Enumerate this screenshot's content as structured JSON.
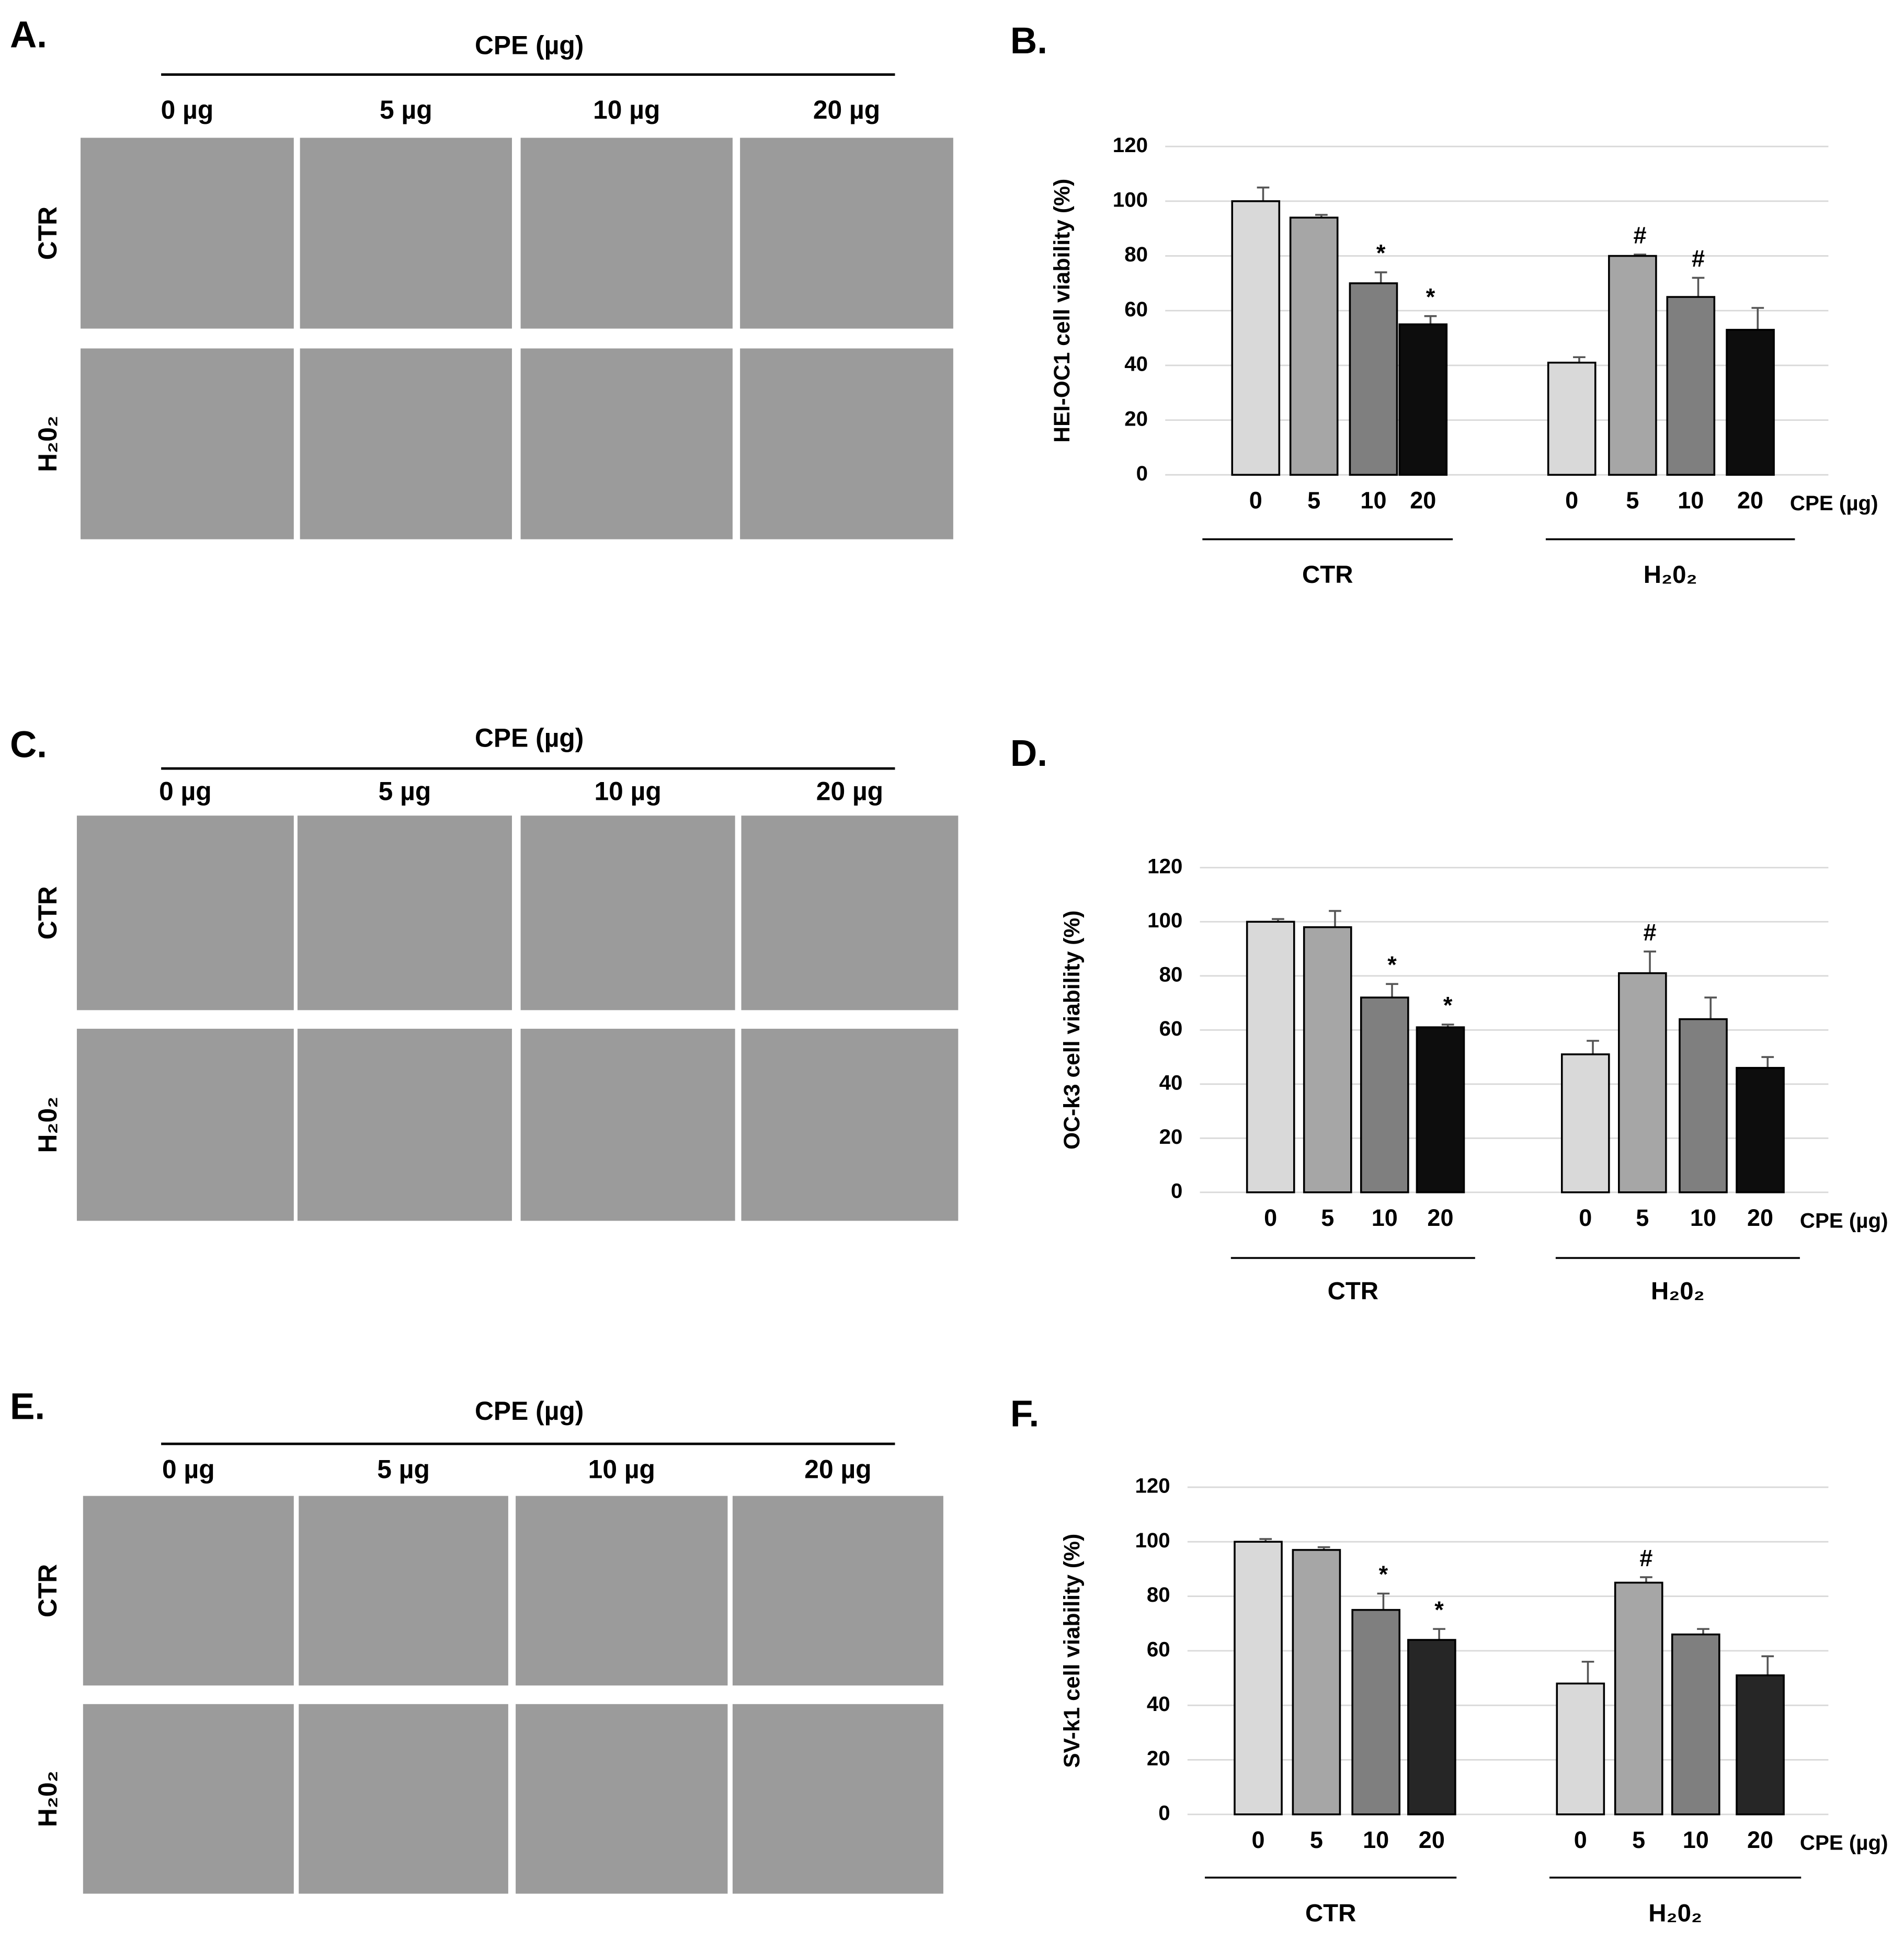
{
  "image_panels": [
    {
      "label": "A.",
      "header": "CPE (µg)",
      "columns": [
        "0 µg",
        "5 µg",
        "10 µg",
        "20 µg"
      ],
      "rows": [
        "CTR",
        "H₂0₂"
      ]
    },
    {
      "label": "C.",
      "header": "CPE (µg)",
      "columns": [
        "0 µg",
        "5 µg",
        "10 µg",
        "20 µg"
      ],
      "rows": [
        "CTR",
        "H₂0₂"
      ]
    },
    {
      "label": "E.",
      "header": "CPE (µg)",
      "columns": [
        "0 µg",
        "5 µg",
        "10 µg",
        "20 µg"
      ],
      "rows": [
        "CTR",
        "H₂0₂"
      ]
    }
  ],
  "chart_data": [
    {
      "type": "bar",
      "panel_label": "B.",
      "y_label": "HEI-OC1 cell viability (%)",
      "x_label": "CPE (µg)",
      "categories": [
        "0",
        "5",
        "10",
        "20"
      ],
      "colors": [
        "#d9d9d9",
        "#a6a6a6",
        "#7f7f7f",
        "#0d0d0d"
      ],
      "series": [
        {
          "name": "CTR",
          "values": [
            100,
            94,
            70,
            55
          ],
          "errors": [
            5,
            1,
            4,
            3
          ],
          "annotations": [
            null,
            null,
            "*",
            "*"
          ]
        },
        {
          "name": "H₂0₂",
          "values": [
            41,
            80,
            65,
            53
          ],
          "errors": [
            2,
            0.5,
            7,
            8
          ],
          "annotations": [
            null,
            "#",
            "#",
            null
          ]
        }
      ],
      "ylim": [
        0,
        120
      ],
      "yticks": [
        0,
        20,
        40,
        60,
        80,
        100,
        120
      ],
      "grid": true
    },
    {
      "type": "bar",
      "panel_label": "D.",
      "y_label": "OC-k3  cell viability (%)",
      "x_label": "CPE (µg)",
      "categories": [
        "0",
        "5",
        "10",
        "20"
      ],
      "colors": [
        "#d9d9d9",
        "#a6a6a6",
        "#7f7f7f",
        "#0d0d0d"
      ],
      "series": [
        {
          "name": "CTR",
          "values": [
            100,
            98,
            72,
            61
          ],
          "errors": [
            1,
            6,
            5,
            1
          ],
          "annotations": [
            null,
            null,
            "*",
            "*"
          ]
        },
        {
          "name": "H₂0₂",
          "values": [
            51,
            81,
            64,
            46
          ],
          "errors": [
            5,
            8,
            8,
            4
          ],
          "annotations": [
            null,
            "#",
            null,
            null
          ]
        }
      ],
      "ylim": [
        0,
        120
      ],
      "yticks": [
        0,
        20,
        40,
        60,
        80,
        100,
        120
      ],
      "grid": true
    },
    {
      "type": "bar",
      "panel_label": "F.",
      "y_label": "SV-k1 cell viability (%)",
      "x_label": "CPE (µg)",
      "categories": [
        "0",
        "5",
        "10",
        "20"
      ],
      "colors": [
        "#d9d9d9",
        "#a6a6a6",
        "#7f7f7f",
        "#262626"
      ],
      "series": [
        {
          "name": "CTR",
          "values": [
            100,
            97,
            75,
            64
          ],
          "errors": [
            1,
            1,
            6,
            4
          ],
          "annotations": [
            null,
            null,
            "*",
            "*"
          ]
        },
        {
          "name": "H₂0₂",
          "values": [
            48,
            85,
            66,
            51
          ],
          "errors": [
            8,
            2,
            2,
            7
          ],
          "annotations": [
            null,
            "#",
            null,
            null
          ]
        }
      ],
      "ylim": [
        0,
        120
      ],
      "yticks": [
        0,
        20,
        40,
        60,
        80,
        100,
        120
      ],
      "grid": true
    }
  ]
}
